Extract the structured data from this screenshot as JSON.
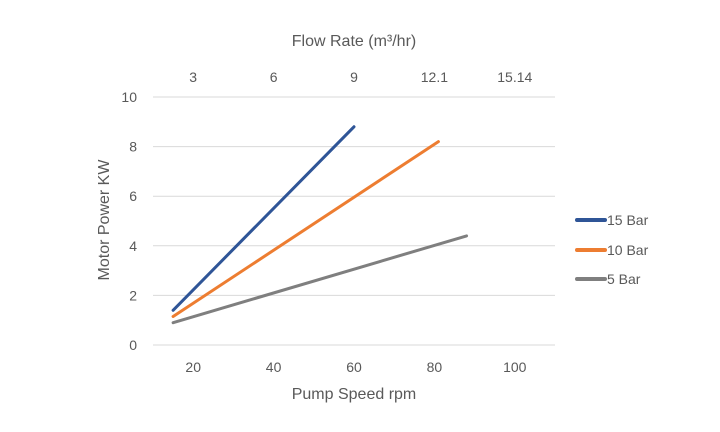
{
  "chart_data": {
    "type": "line",
    "x_top_title": "Flow Rate (m³/hr)",
    "x_top_ticks": [
      "3",
      "6",
      "9",
      "12.1",
      "15.14"
    ],
    "xlabel": "Pump Speed rpm",
    "ylabel": "Motor Power KW",
    "xlim": [
      10,
      110
    ],
    "ylim": [
      0,
      10
    ],
    "x_ticks": [
      20,
      40,
      60,
      80,
      100
    ],
    "y_ticks": [
      0,
      2,
      4,
      6,
      8,
      10
    ],
    "grid": true,
    "legend_position": "right",
    "series": [
      {
        "name": "15 Bar",
        "color": "#2F5597",
        "x": [
          15,
          60
        ],
        "y": [
          1.4,
          8.8
        ]
      },
      {
        "name": "10 Bar",
        "color": "#ED7D31",
        "x": [
          15,
          81
        ],
        "y": [
          1.15,
          8.2
        ]
      },
      {
        "name": "5 Bar",
        "color": "#7F7F7F",
        "x": [
          15,
          88
        ],
        "y": [
          0.9,
          4.4
        ]
      }
    ]
  }
}
